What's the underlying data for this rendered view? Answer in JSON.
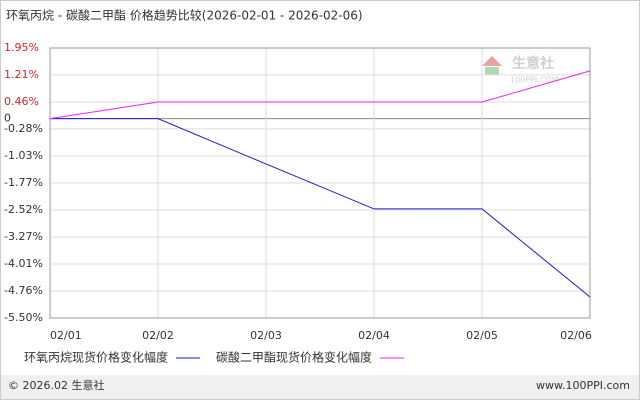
{
  "chart_data": {
    "type": "line",
    "title": "环氧丙烷 - 碳酸二甲酯 价格趋势比较(2026-02-01 - 2026-02-06)",
    "categories": [
      "02/01",
      "02/02",
      "02/03",
      "02/04",
      "02/05",
      "02/06"
    ],
    "series": [
      {
        "name": "环氧丙烷现货价格变化幅度",
        "color": "#1a1acc",
        "values": [
          0,
          0,
          -1.25,
          -2.49,
          -2.49,
          -4.92
        ]
      },
      {
        "name": "碳酸二甲酯现货价格变化幅度",
        "color": "#ee22ee",
        "values": [
          0,
          0.46,
          0.46,
          0.46,
          0.46,
          1.32
        ]
      }
    ],
    "ylim": [
      -5.5,
      1.95
    ],
    "yticks": [
      {
        "value": 1.95,
        "label": "1.95%"
      },
      {
        "value": 1.21,
        "label": "1.21%"
      },
      {
        "value": 0.46,
        "label": "0.46%"
      },
      0,
      {
        "value": -0.28,
        "label": "-0.28%"
      },
      {
        "value": -1.03,
        "label": "-1.03%"
      },
      {
        "value": -1.77,
        "label": "-1.77%"
      },
      {
        "value": -2.52,
        "label": "-2.52%"
      },
      {
        "value": -3.27,
        "label": "-3.27%"
      },
      {
        "value": -4.01,
        "label": "-4.01%"
      },
      {
        "value": -4.76,
        "label": "-4.76%"
      },
      {
        "value": -5.5,
        "label": "-5.50%"
      }
    ],
    "grid": true,
    "watermark": {
      "name": "生意社",
      "site": "100PPI.COM"
    },
    "footer": {
      "left": "© 2026.02 生意社",
      "right": "www.100PPI.com"
    }
  }
}
